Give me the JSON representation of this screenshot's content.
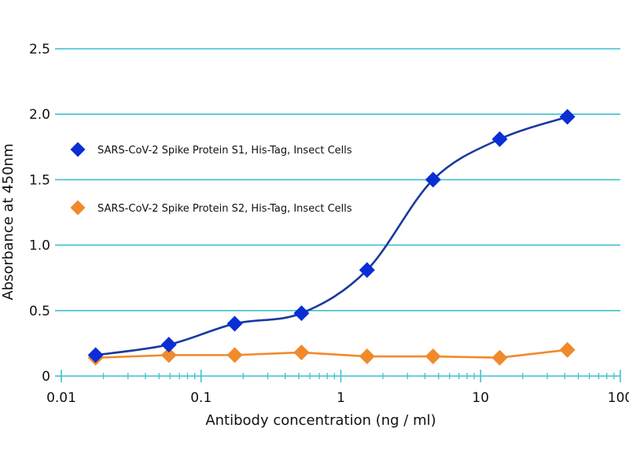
{
  "chart_data": {
    "type": "line",
    "title": "",
    "xlabel": "Antibody concentration (ng / ml)",
    "ylabel": "Absorbance at 450nm",
    "xscale": "log",
    "xlim": [
      0.01,
      100
    ],
    "ylim": [
      0,
      2.5
    ],
    "x_ticks": [
      {
        "value": 0.01,
        "label": "0.01"
      },
      {
        "value": 0.1,
        "label": "0.1"
      },
      {
        "value": 1,
        "label": "1"
      },
      {
        "value": 10,
        "label": "10"
      },
      {
        "value": 100,
        "label": "100"
      }
    ],
    "y_ticks": [
      {
        "value": 0,
        "label": "0"
      },
      {
        "value": 0.5,
        "label": "0.5"
      },
      {
        "value": 1.0,
        "label": "1.0"
      },
      {
        "value": 1.5,
        "label": "1.5"
      },
      {
        "value": 2.0,
        "label": "2.0"
      },
      {
        "value": 2.5,
        "label": "2.5"
      }
    ],
    "grid": "horizontal",
    "legend_position": "top-left",
    "series": [
      {
        "name": "SARS-CoV-2 Spike Protein S1, His-Tag, Insect Cells",
        "color": "#1a3a9e",
        "marker_color": "#0a2ed6",
        "curve": "smooth",
        "x": [
          0.0176,
          0.0588,
          0.174,
          0.523,
          1.54,
          4.57,
          13.7,
          41.8
        ],
        "y": [
          0.16,
          0.24,
          0.4,
          0.48,
          0.81,
          1.5,
          1.81,
          1.98
        ]
      },
      {
        "name": "SARS-CoV-2 Spike Protein S2, His-Tag, Insect Cells",
        "color": "#f08a2a",
        "marker_color": "#f08a2a",
        "curve": "straight",
        "x": [
          0.0176,
          0.0588,
          0.174,
          0.523,
          1.54,
          4.57,
          13.7,
          41.8
        ],
        "y": [
          0.14,
          0.16,
          0.16,
          0.18,
          0.15,
          0.15,
          0.14,
          0.2
        ]
      }
    ]
  },
  "colors": {
    "gridline": "#3fbfcf",
    "axis": "#3fbfcf"
  }
}
